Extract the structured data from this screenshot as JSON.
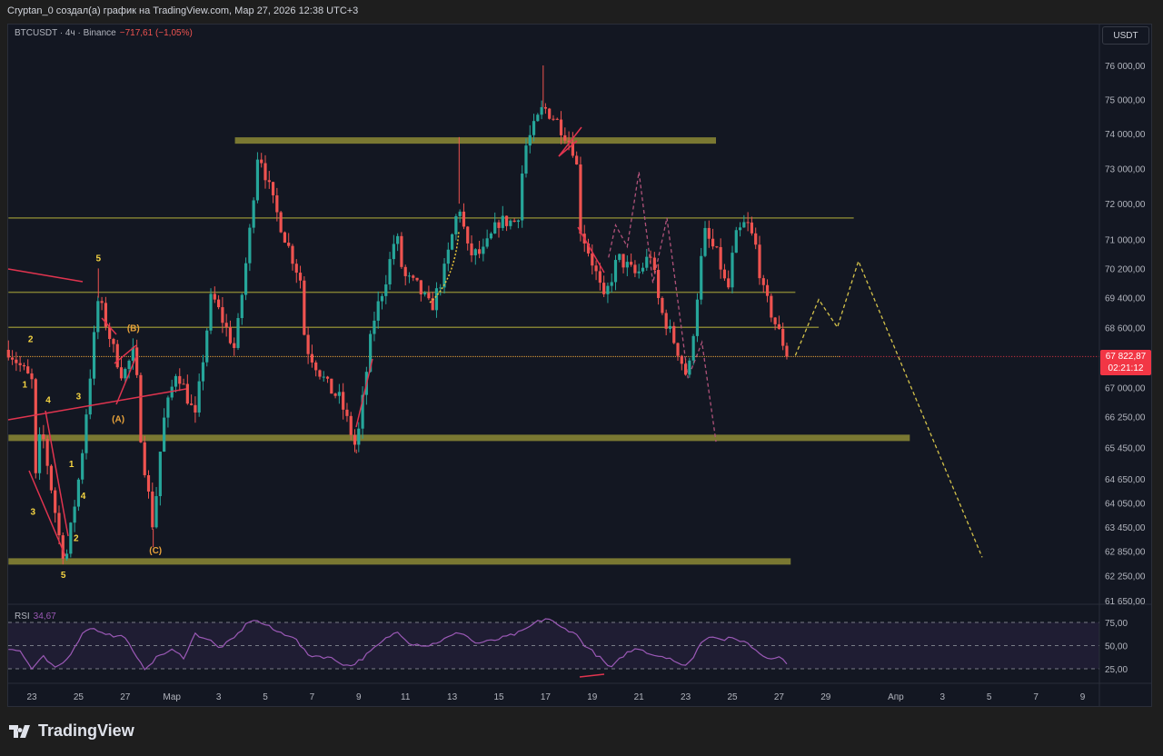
{
  "header": {
    "caption": "Cryptan_0 создал(а) график на TradingView.com, Мар 27, 2026 12:38 UTC+3"
  },
  "legend": {
    "symbol": "BTCUSDT · 4ч · Binance",
    "change": "−717,61 (−1,05%)"
  },
  "currency": "USDT",
  "last_price": {
    "value": "67 822,87",
    "countdown": "02:21:12",
    "price": 67822.87
  },
  "colors": {
    "up": "#26a69a",
    "down": "#ef5350",
    "level": "#8c8a35",
    "annotation": "#e0344f",
    "projection": "#d4c24a",
    "alt_projection": "#b0527a",
    "rsi": "#9b59b6"
  },
  "price_axis": [
    "76 000,00",
    "75 000,00",
    "74 000,00",
    "73 000,00",
    "72 000,00",
    "71 000,00",
    "70 200,00",
    "69 400,00",
    "68 600,00",
    "67 000,00",
    "66 250,00",
    "65 450,00",
    "64 650,00",
    "64 050,00",
    "63 450,00",
    "62 850,00",
    "62 250,00",
    "61 650,00"
  ],
  "price_axis_values": [
    76000,
    75000,
    74000,
    73000,
    72000,
    71000,
    70200,
    69400,
    68600,
    67000,
    66250,
    65450,
    64650,
    64050,
    63450,
    62850,
    62250,
    61650
  ],
  "time_axis": [
    {
      "label": "23",
      "day": 0
    },
    {
      "label": "25",
      "day": 2
    },
    {
      "label": "27",
      "day": 4
    },
    {
      "label": "Мар",
      "day": 6
    },
    {
      "label": "3",
      "day": 8
    },
    {
      "label": "5",
      "day": 10
    },
    {
      "label": "7",
      "day": 12
    },
    {
      "label": "9",
      "day": 14
    },
    {
      "label": "11",
      "day": 16
    },
    {
      "label": "13",
      "day": 18
    },
    {
      "label": "15",
      "day": 20
    },
    {
      "label": "17",
      "day": 22
    },
    {
      "label": "19",
      "day": 24
    },
    {
      "label": "21",
      "day": 26
    },
    {
      "label": "23",
      "day": 28
    },
    {
      "label": "25",
      "day": 30
    },
    {
      "label": "27",
      "day": 32
    },
    {
      "label": "29",
      "day": 34
    },
    {
      "label": "Апр",
      "day": 37
    },
    {
      "label": "3",
      "day": 39
    },
    {
      "label": "5",
      "day": 41
    },
    {
      "label": "7",
      "day": 43
    },
    {
      "label": "9",
      "day": 45
    }
  ],
  "rsi": {
    "label": "RSI",
    "value": "34,67",
    "axis": [
      "75,00",
      "50,00",
      "25,00"
    ],
    "levels": [
      70,
      50,
      30
    ]
  },
  "chart_data": {
    "type": "candlestick",
    "symbol": "BTCUSDT",
    "interval": "4h",
    "exchange": "Binance",
    "price_scale": "log",
    "price_path_day_price": [
      [
        -1,
        68000
      ],
      [
        0,
        67150
      ],
      [
        0.1,
        64300
      ],
      [
        0.4,
        66000
      ],
      [
        1.2,
        63100
      ],
      [
        1.45,
        62600
      ],
      [
        2.1,
        65000
      ],
      [
        2.85,
        69400
      ],
      [
        3.5,
        68000
      ],
      [
        3.9,
        67300
      ],
      [
        4.4,
        68000
      ],
      [
        4.7,
        65500
      ],
      [
        5.2,
        63400
      ],
      [
        5.6,
        66000
      ],
      [
        6.2,
        67500
      ],
      [
        7,
        66200
      ],
      [
        7.7,
        69500
      ],
      [
        8.7,
        68000
      ],
      [
        9.3,
        71000
      ],
      [
        9.7,
        73600
      ],
      [
        10.3,
        72100
      ],
      [
        10.9,
        70950
      ],
      [
        11.5,
        69900
      ],
      [
        11.7,
        68150
      ],
      [
        12.7,
        67000
      ],
      [
        13.2,
        66700
      ],
      [
        13.9,
        65400
      ],
      [
        14.6,
        68700
      ],
      [
        15.2,
        70000
      ],
      [
        15.6,
        71200
      ],
      [
        15.9,
        70000
      ],
      [
        16.5,
        69700
      ],
      [
        17.1,
        69100
      ],
      [
        17.7,
        70200
      ],
      [
        18.3,
        72000
      ],
      [
        18.7,
        70600
      ],
      [
        19.3,
        70600
      ],
      [
        20,
        71500
      ],
      [
        20.8,
        71500
      ],
      [
        21.1,
        73550
      ],
      [
        21.9,
        74770
      ],
      [
        22.4,
        74450
      ],
      [
        22.9,
        73930
      ],
      [
        23.3,
        73400
      ],
      [
        23.5,
        71300
      ],
      [
        24.1,
        70200
      ],
      [
        24.5,
        69300
      ],
      [
        25.1,
        70500
      ],
      [
        25.9,
        70000
      ],
      [
        26.5,
        70600
      ],
      [
        26.9,
        69100
      ],
      [
        27.6,
        68100
      ],
      [
        28.1,
        67200
      ],
      [
        28.4,
        68900
      ],
      [
        28.8,
        71200
      ],
      [
        29.4,
        70500
      ],
      [
        29.8,
        69500
      ],
      [
        30.1,
        71000
      ],
      [
        30.6,
        71500
      ],
      [
        31,
        70800
      ],
      [
        31.3,
        69600
      ],
      [
        31.9,
        68600
      ],
      [
        32.4,
        67822.87
      ]
    ],
    "rsi_path_day_value": [
      [
        -1,
        48
      ],
      [
        -0.5,
        45
      ],
      [
        0,
        30
      ],
      [
        0.5,
        40
      ],
      [
        1,
        30
      ],
      [
        1.5,
        38
      ],
      [
        2,
        55
      ],
      [
        2.4,
        66
      ],
      [
        3,
        62
      ],
      [
        3.5,
        58
      ],
      [
        4,
        58
      ],
      [
        4.3,
        45
      ],
      [
        4.8,
        30
      ],
      [
        5.5,
        42
      ],
      [
        6,
        46
      ],
      [
        6.5,
        40
      ],
      [
        7,
        60
      ],
      [
        7.6,
        55
      ],
      [
        8,
        48
      ],
      [
        8.6,
        55
      ],
      [
        9.4,
        73
      ],
      [
        10,
        68
      ],
      [
        10.5,
        62
      ],
      [
        11.2,
        58
      ],
      [
        11.8,
        42
      ],
      [
        12.7,
        40
      ],
      [
        13.6,
        32
      ],
      [
        14.1,
        38
      ],
      [
        14.7,
        48
      ],
      [
        15.3,
        58
      ],
      [
        15.7,
        62
      ],
      [
        16.2,
        52
      ],
      [
        17,
        50
      ],
      [
        17.6,
        55
      ],
      [
        18.4,
        62
      ],
      [
        19,
        52
      ],
      [
        19.7,
        54
      ],
      [
        20.4,
        58
      ],
      [
        21,
        62
      ],
      [
        21.6,
        70
      ],
      [
        22.1,
        74
      ],
      [
        22.6,
        66
      ],
      [
        23.2,
        62
      ],
      [
        23.7,
        50
      ],
      [
        24.3,
        40
      ],
      [
        24.8,
        30
      ],
      [
        25.4,
        43
      ],
      [
        26,
        48
      ],
      [
        26.6,
        42
      ],
      [
        27.3,
        40
      ],
      [
        27.8,
        32
      ],
      [
        28.3,
        38
      ],
      [
        28.7,
        55
      ],
      [
        29.2,
        59
      ],
      [
        29.5,
        55
      ],
      [
        29.9,
        56
      ],
      [
        30.5,
        54
      ],
      [
        30.9,
        48
      ],
      [
        31.4,
        40
      ],
      [
        32,
        40
      ],
      [
        32.4,
        34.67
      ]
    ],
    "levels": [
      {
        "price": 73800,
        "from_day": 8.7,
        "to_day": 29.3,
        "weight": "thick"
      },
      {
        "price": 71600,
        "from_day": -1,
        "to_day": 35.2,
        "weight": "thin"
      },
      {
        "price": 69550,
        "from_day": -1,
        "to_day": 32.7,
        "weight": "thin"
      },
      {
        "price": 68600,
        "from_day": -1,
        "to_day": 33.7,
        "weight": "thin"
      },
      {
        "price": 65700,
        "from_day": -1,
        "to_day": 37.6,
        "weight": "thick"
      },
      {
        "price": 62600,
        "from_day": -1,
        "to_day": 32.5,
        "weight": "thick"
      }
    ],
    "projection_day_price": [
      [
        32.7,
        67850
      ],
      [
        33.7,
        69350
      ],
      [
        34.5,
        68600
      ],
      [
        35.4,
        70400
      ],
      [
        40.7,
        62700
      ]
    ],
    "alt_projection_day_price": [
      [
        24.7,
        70500
      ],
      [
        25.0,
        71400
      ],
      [
        25.5,
        70800
      ],
      [
        26.0,
        72900
      ],
      [
        26.6,
        69800
      ],
      [
        27.2,
        71600
      ],
      [
        28.1,
        67250
      ],
      [
        28.7,
        68200
      ],
      [
        29.3,
        65600
      ]
    ],
    "wave_labels": [
      {
        "text": "2",
        "day": -0.05,
        "price": 68200,
        "style": "y"
      },
      {
        "text": "1",
        "day": -0.3,
        "price": 67000,
        "style": "y"
      },
      {
        "text": "4",
        "day": 0.7,
        "price": 66600,
        "style": "y"
      },
      {
        "text": "3",
        "day": 2.0,
        "price": 66700,
        "style": "y"
      },
      {
        "text": "3",
        "day": 0.05,
        "price": 63750,
        "style": "y"
      },
      {
        "text": "1",
        "day": 1.7,
        "price": 64950,
        "style": "y"
      },
      {
        "text": "4",
        "day": 2.2,
        "price": 64150,
        "style": "y"
      },
      {
        "text": "2",
        "day": 1.9,
        "price": 63100,
        "style": "y"
      },
      {
        "text": "5",
        "day": 1.35,
        "price": 62200,
        "style": "y"
      },
      {
        "text": "5",
        "day": 2.85,
        "price": 70400,
        "style": "y"
      },
      {
        "text": "(B)",
        "day": 4.35,
        "price": 68500,
        "style": "o"
      },
      {
        "text": "(A)",
        "day": 3.7,
        "price": 66100,
        "style": "o"
      },
      {
        "text": "(C)",
        "day": 5.3,
        "price": 62800,
        "style": "o"
      }
    ]
  }
}
